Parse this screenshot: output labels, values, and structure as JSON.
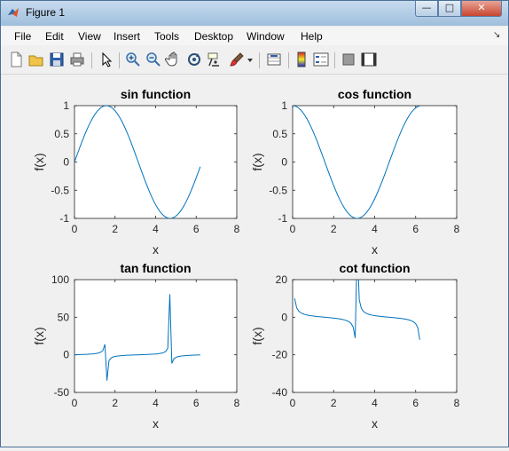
{
  "window": {
    "title": "Figure 1"
  },
  "window_controls": {
    "minimize": "—",
    "maximize": "□",
    "close": "✕"
  },
  "menu": [
    "File",
    "Edit",
    "View",
    "Insert",
    "Tools",
    "Desktop",
    "Window",
    "Help"
  ],
  "toolbar_icons": [
    "new-figure-icon",
    "open-file-icon",
    "save-icon",
    "print-icon",
    "select-arrow-icon",
    "zoom-in-icon",
    "zoom-out-icon",
    "pan-hand-icon",
    "rotate-3d-icon",
    "data-cursor-icon",
    "brush-icon",
    "brush-dropdown-icon",
    "link-plot-icon",
    "colorbar-icon",
    "legend-icon",
    "hide-plot-tools-icon",
    "show-plot-tools-icon"
  ],
  "chart_data": [
    {
      "type": "line",
      "title": "sin function",
      "xlabel": "x",
      "ylabel": "f(x)",
      "xlim": [
        0,
        8
      ],
      "ylim": [
        -1,
        1
      ],
      "xticks": [
        "0",
        "2",
        "4",
        "6",
        "8"
      ],
      "yticks": [
        "-1",
        "-0.5",
        "0",
        "0.5",
        "1"
      ],
      "function": "sin",
      "x_domain": [
        0,
        6.2
      ],
      "grid": false,
      "color": "#0072bd"
    },
    {
      "type": "line",
      "title": "cos function",
      "xlabel": "x",
      "ylabel": "f(x)",
      "xlim": [
        0,
        8
      ],
      "ylim": [
        -1,
        1
      ],
      "xticks": [
        "0",
        "2",
        "4",
        "6",
        "8"
      ],
      "yticks": [
        "-1",
        "-0.5",
        "0",
        "0.5",
        "1"
      ],
      "function": "cos",
      "x_domain": [
        0,
        6.2
      ],
      "grid": false,
      "color": "#0072bd"
    },
    {
      "type": "line",
      "title": "tan function",
      "xlabel": "x",
      "ylabel": "f(x)",
      "xlim": [
        0,
        8
      ],
      "ylim": [
        -50,
        100
      ],
      "xticks": [
        "0",
        "2",
        "4",
        "6",
        "8"
      ],
      "yticks": [
        "-50",
        "0",
        "50",
        "100"
      ],
      "function": "tan",
      "x_domain": [
        0,
        6.2
      ],
      "grid": false,
      "color": "#0072bd"
    },
    {
      "type": "line",
      "title": "cot function",
      "xlabel": "x",
      "ylabel": "f(x)",
      "xlim": [
        0,
        8
      ],
      "ylim": [
        -40,
        20
      ],
      "xticks": [
        "0",
        "2",
        "4",
        "6",
        "8"
      ],
      "yticks": [
        "-40",
        "-20",
        "0",
        "20"
      ],
      "function": "cot",
      "x_domain": [
        0.1,
        6.2
      ],
      "grid": false,
      "color": "#0072bd"
    }
  ]
}
